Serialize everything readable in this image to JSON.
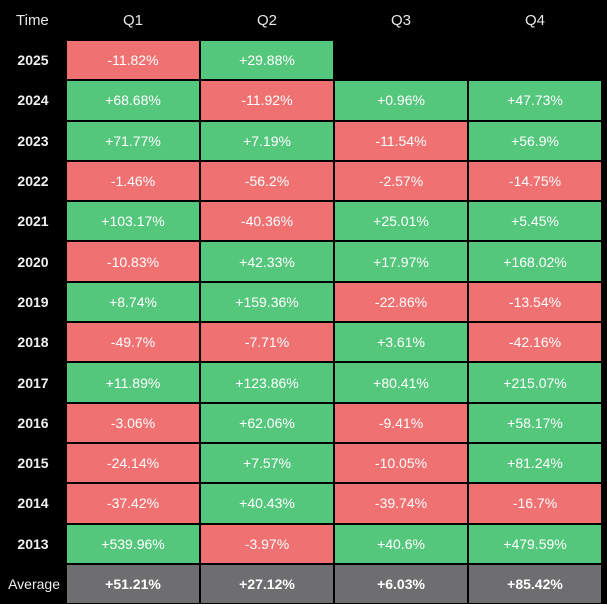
{
  "header": {
    "time_label": "Time",
    "quarters": [
      "Q1",
      "Q2",
      "Q3",
      "Q4"
    ]
  },
  "colors": {
    "positive": "#55c77d",
    "negative": "#f07171",
    "average": "#6e6e70",
    "background": "#000000"
  },
  "chart_data": {
    "type": "table",
    "columns": [
      "Time",
      "Q1",
      "Q2",
      "Q3",
      "Q4"
    ],
    "rows": [
      {
        "year": "2025",
        "values": [
          "-11.82%",
          "+29.88%",
          null,
          null
        ]
      },
      {
        "year": "2024",
        "values": [
          "+68.68%",
          "-11.92%",
          "+0.96%",
          "+47.73%"
        ]
      },
      {
        "year": "2023",
        "values": [
          "+71.77%",
          "+7.19%",
          "-11.54%",
          "+56.9%"
        ]
      },
      {
        "year": "2022",
        "values": [
          "-1.46%",
          "-56.2%",
          "-2.57%",
          "-14.75%"
        ]
      },
      {
        "year": "2021",
        "values": [
          "+103.17%",
          "-40.36%",
          "+25.01%",
          "+5.45%"
        ]
      },
      {
        "year": "2020",
        "values": [
          "-10.83%",
          "+42.33%",
          "+17.97%",
          "+168.02%"
        ]
      },
      {
        "year": "2019",
        "values": [
          "+8.74%",
          "+159.36%",
          "-22.86%",
          "-13.54%"
        ]
      },
      {
        "year": "2018",
        "values": [
          "-49.7%",
          "-7.71%",
          "+3.61%",
          "-42.16%"
        ]
      },
      {
        "year": "2017",
        "values": [
          "+11.89%",
          "+123.86%",
          "+80.41%",
          "+215.07%"
        ]
      },
      {
        "year": "2016",
        "values": [
          "-3.06%",
          "+62.06%",
          "-9.41%",
          "+58.17%"
        ]
      },
      {
        "year": "2015",
        "values": [
          "-24.14%",
          "+7.57%",
          "-10.05%",
          "+81.24%"
        ]
      },
      {
        "year": "2014",
        "values": [
          "-37.42%",
          "+40.43%",
          "-39.74%",
          "-16.7%"
        ]
      },
      {
        "year": "2013",
        "values": [
          "+539.96%",
          "-3.97%",
          "+40.6%",
          "+479.59%"
        ]
      }
    ],
    "average": {
      "label": "Average",
      "values": [
        "+51.21%",
        "+27.12%",
        "+6.03%",
        "+85.42%"
      ]
    }
  }
}
